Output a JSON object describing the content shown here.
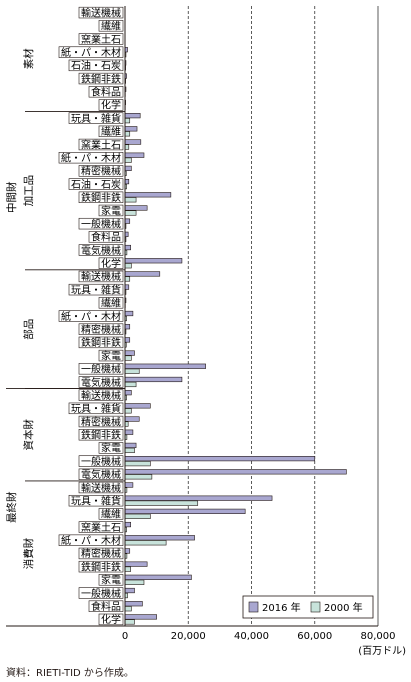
{
  "chart_data": {
    "type": "bar",
    "orientation": "horizontal",
    "unit_label": "(百万ドル)",
    "xlim": [
      0,
      80000
    ],
    "x_ticks": [
      "0",
      "20,000",
      "40,000",
      "60,000",
      "80,000"
    ],
    "x_tick_values": [
      0,
      20000,
      40000,
      60000,
      80000
    ],
    "grid": "vertical dashed",
    "legend_position": "bottom-right",
    "series": [
      {
        "name": "2016 年",
        "color": "#a9a7d0"
      },
      {
        "name": "2000 年",
        "color": "#c8e3db"
      }
    ],
    "groups": [
      {
        "label": "中間財",
        "sub": [
          {
            "label": "素材",
            "rows": [
              {
                "label": "輸送機械",
                "v2016": 0,
                "v2000": 0
              },
              {
                "label": "繊維",
                "v2016": 0,
                "v2000": 0
              },
              {
                "label": "窯業土石",
                "v2016": 0,
                "v2000": 0
              },
              {
                "label": "紙・パ・木材",
                "v2016": 800,
                "v2000": 300
              },
              {
                "label": "石油・石炭",
                "v2016": 300,
                "v2000": 200
              },
              {
                "label": "鉄鋼非鉄",
                "v2016": 500,
                "v2000": 200
              },
              {
                "label": "食料品",
                "v2016": 300,
                "v2000": 100
              },
              {
                "label": "化学",
                "v2016": 200,
                "v2000": 100
              }
            ]
          },
          {
            "label": "加工品",
            "rows": [
              {
                "label": "玩具・雑貨",
                "v2016": 4800,
                "v2000": 1500
              },
              {
                "label": "繊維",
                "v2016": 3800,
                "v2000": 1500
              },
              {
                "label": "窯業土石",
                "v2016": 5000,
                "v2000": 1200
              },
              {
                "label": "紙・パ・木材",
                "v2016": 6000,
                "v2000": 2000
              },
              {
                "label": "精密機械",
                "v2016": 2000,
                "v2000": 400
              },
              {
                "label": "石油・石炭",
                "v2016": 1200,
                "v2000": 500
              },
              {
                "label": "鉄鋼非鉄",
                "v2016": 14500,
                "v2000": 3500
              },
              {
                "label": "家電",
                "v2016": 7000,
                "v2000": 3500
              },
              {
                "label": "一般機械",
                "v2016": 1500,
                "v2000": 300
              },
              {
                "label": "食料品",
                "v2016": 1000,
                "v2000": 300
              },
              {
                "label": "電気機械",
                "v2016": 1800,
                "v2000": 600
              },
              {
                "label": "化学",
                "v2016": 18000,
                "v2000": 2000
              }
            ]
          },
          {
            "label": "部品",
            "rows": [
              {
                "label": "輸送機械",
                "v2016": 11000,
                "v2000": 1500
              },
              {
                "label": "玩具・雑貨",
                "v2016": 1200,
                "v2000": 300
              },
              {
                "label": "繊維",
                "v2016": 300,
                "v2000": 100
              },
              {
                "label": "紙・パ・木材",
                "v2016": 2500,
                "v2000": 500
              },
              {
                "label": "精密機械",
                "v2016": 1500,
                "v2000": 300
              },
              {
                "label": "鉄鋼非鉄",
                "v2016": 1500,
                "v2000": 400
              },
              {
                "label": "家電",
                "v2016": 3000,
                "v2000": 2000
              },
              {
                "label": "一般機械",
                "v2016": 25500,
                "v2000": 4500
              },
              {
                "label": "電気機械",
                "v2016": 18000,
                "v2000": 3500
              }
            ]
          }
        ]
      },
      {
        "label": "最終財",
        "sub": [
          {
            "label": "資本財",
            "rows": [
              {
                "label": "輸送機械",
                "v2016": 2000,
                "v2000": 500
              },
              {
                "label": "玩具・雑貨",
                "v2016": 8000,
                "v2000": 2000
              },
              {
                "label": "精密機械",
                "v2016": 4500,
                "v2000": 1000
              },
              {
                "label": "鉄鋼非鉄",
                "v2016": 2500,
                "v2000": 600
              },
              {
                "label": "家電",
                "v2016": 3500,
                "v2000": 3000
              },
              {
                "label": "一般機械",
                "v2016": 60000,
                "v2000": 8000
              },
              {
                "label": "電気機械",
                "v2016": 70000,
                "v2000": 8500
              }
            ]
          },
          {
            "label": "消費財",
            "rows": [
              {
                "label": "輸送機械",
                "v2016": 2500,
                "v2000": 600
              },
              {
                "label": "玩具・雑貨",
                "v2016": 46500,
                "v2000": 23000
              },
              {
                "label": "繊維",
                "v2016": 38000,
                "v2000": 8000
              },
              {
                "label": "窯業土石",
                "v2016": 1800,
                "v2000": 500
              },
              {
                "label": "紙・パ・木材",
                "v2016": 22000,
                "v2000": 13000
              },
              {
                "label": "精密機械",
                "v2016": 1500,
                "v2000": 600
              },
              {
                "label": "鉄鋼非鉄",
                "v2016": 7000,
                "v2000": 1800
              },
              {
                "label": "家電",
                "v2016": 21000,
                "v2000": 6000
              },
              {
                "label": "一般機械",
                "v2016": 3000,
                "v2000": 800
              },
              {
                "label": "食料品",
                "v2016": 5500,
                "v2000": 2000
              },
              {
                "label": "化学",
                "v2016": 10000,
                "v2000": 3000
              }
            ]
          }
        ]
      }
    ]
  },
  "source_note": "資料：RIETI-TID から作成。"
}
